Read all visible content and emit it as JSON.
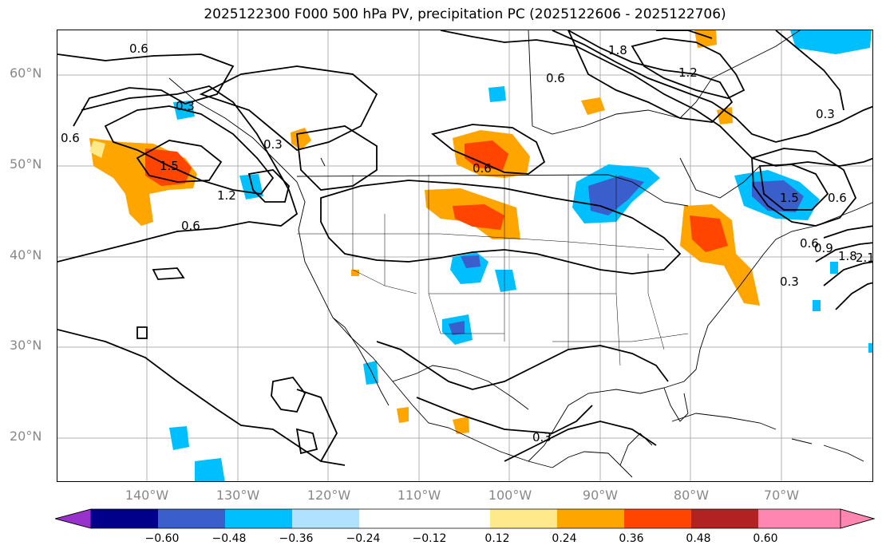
{
  "title": "2025122300 F000 500 hPa PV, precipitation PC (2025122606 - 2025122706)",
  "lat_labels": [
    "60°N",
    "50°N",
    "40°N",
    "30°N",
    "20°N"
  ],
  "lon_labels": [
    "140°W",
    "130°W",
    "120°W",
    "110°W",
    "100°W",
    "90°W",
    "80°W",
    "70°W"
  ],
  "colorbar": {
    "ticks": [
      "−0.60",
      "−0.48",
      "−0.36",
      "−0.24",
      "−0.12",
      "0.12",
      "0.24",
      "0.36",
      "0.48",
      "0.60"
    ],
    "colors": [
      "#9932cc",
      "#00008b",
      "#3a5fcd",
      "#00bfff",
      "#b0e2ff",
      "#ffffff",
      "#ffe98a",
      "#ffa500",
      "#ff4500",
      "#b22222",
      "#ff86b0"
    ]
  },
  "contour_labels": [
    "0.6",
    "0.6",
    "0.6",
    "0.6",
    "0.6",
    "0.6",
    "0.3",
    "0.3",
    "0.3",
    "0.3",
    "0.3",
    "1.5",
    "1.2",
    "1.2",
    "1.8",
    "1.5",
    "0.6",
    "1.8",
    "2.1",
    "0.9"
  ],
  "colors": {
    "positive": "#ffa500",
    "strong_positive": "#ff4500",
    "negative": "#00bfff",
    "strong_negative": "#3a5fcd"
  }
}
